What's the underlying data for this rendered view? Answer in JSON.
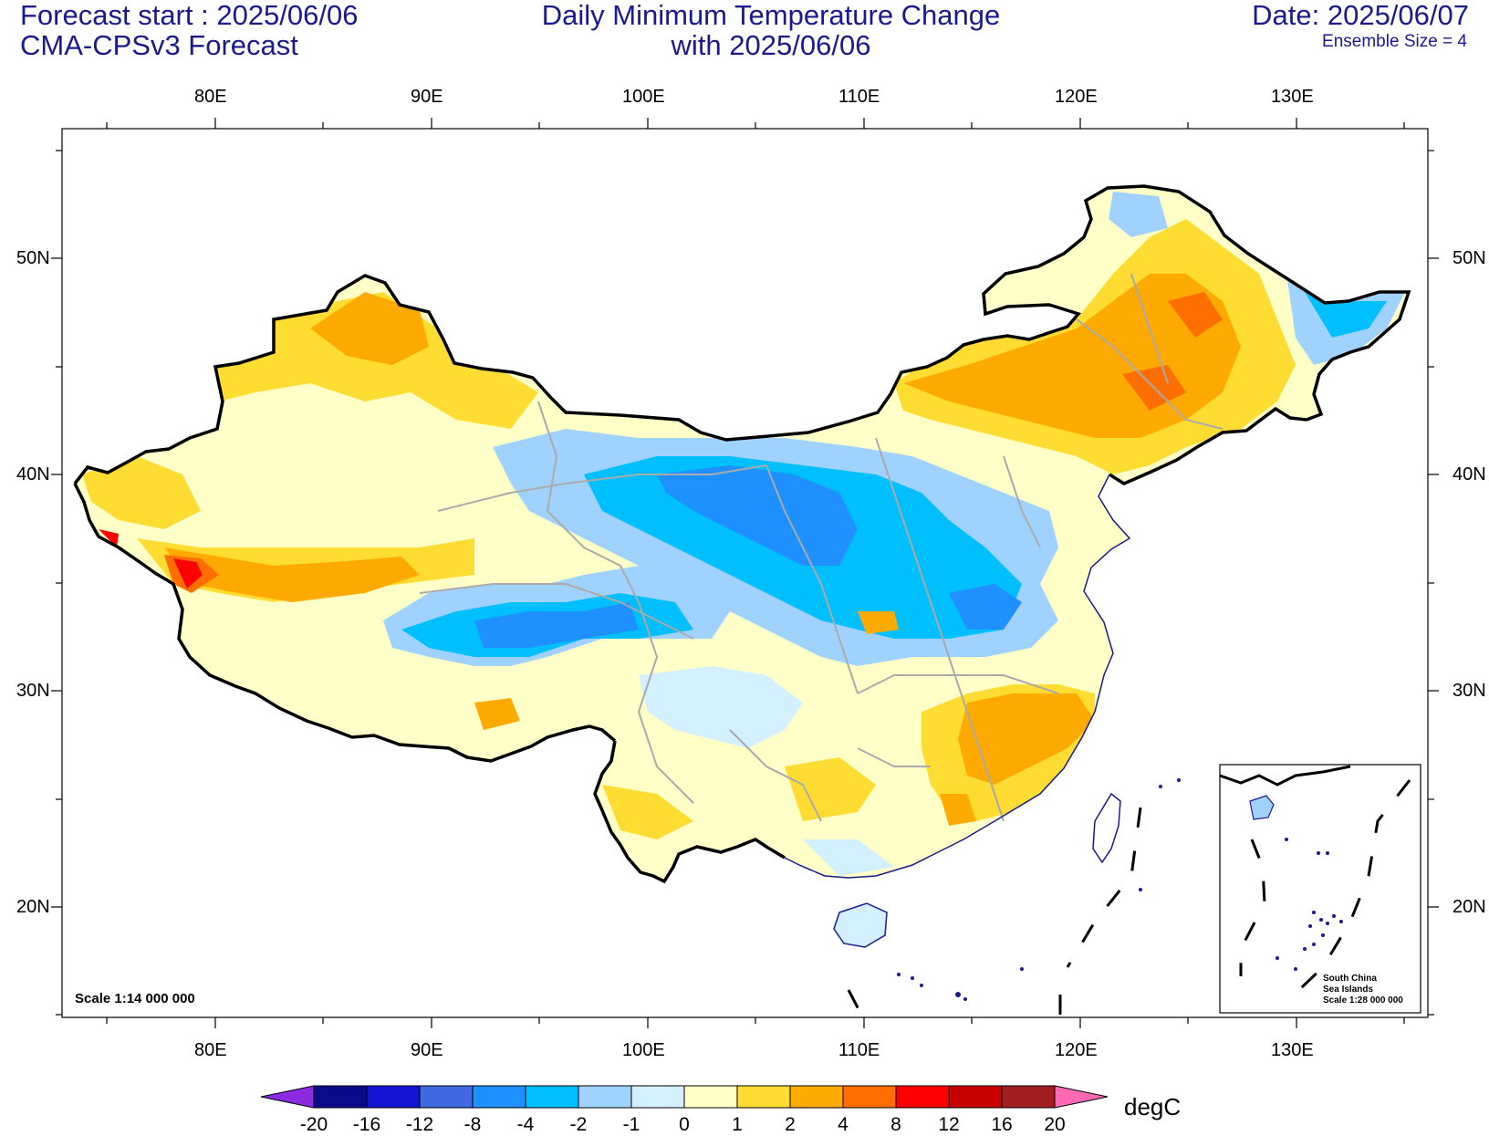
{
  "header": {
    "forecast_start": "Forecast start : 2025/06/06",
    "model": "CMA-CPSv3 Forecast",
    "title_line1": "Daily Minimum Temperature Change",
    "title_line2": "with 2025/06/06",
    "date": "Date: 2025/06/07",
    "ensemble": "Ensemble Size = 4"
  },
  "axes": {
    "lon_labels": [
      "80E",
      "90E",
      "100E",
      "110E",
      "120E",
      "130E"
    ],
    "lat_labels": [
      "50N",
      "40N",
      "30N",
      "20N"
    ]
  },
  "map": {
    "scale_label": "Scale 1:14 000 000",
    "inset": {
      "line1": "South China",
      "line2": "Sea Islands",
      "line3": "Scale 1:28 000 000"
    }
  },
  "colorbar": {
    "unit": "degC",
    "labels": [
      "-20",
      "-16",
      "-12",
      "-8",
      "-4",
      "-2",
      "-1",
      "0",
      "1",
      "2",
      "4",
      "8",
      "12",
      "16",
      "20"
    ],
    "colors": [
      "#0a0a8a",
      "#1414d2",
      "#4169e1",
      "#1e90ff",
      "#00bfff",
      "#a0d2ff",
      "#d2f0ff",
      "#ffffc8",
      "#ffdc32",
      "#ffaa00",
      "#ff6e00",
      "#ff0000",
      "#c80000",
      "#a01e1e"
    ],
    "under_color": "#8a2be2",
    "over_color": "#ff69b4"
  }
}
